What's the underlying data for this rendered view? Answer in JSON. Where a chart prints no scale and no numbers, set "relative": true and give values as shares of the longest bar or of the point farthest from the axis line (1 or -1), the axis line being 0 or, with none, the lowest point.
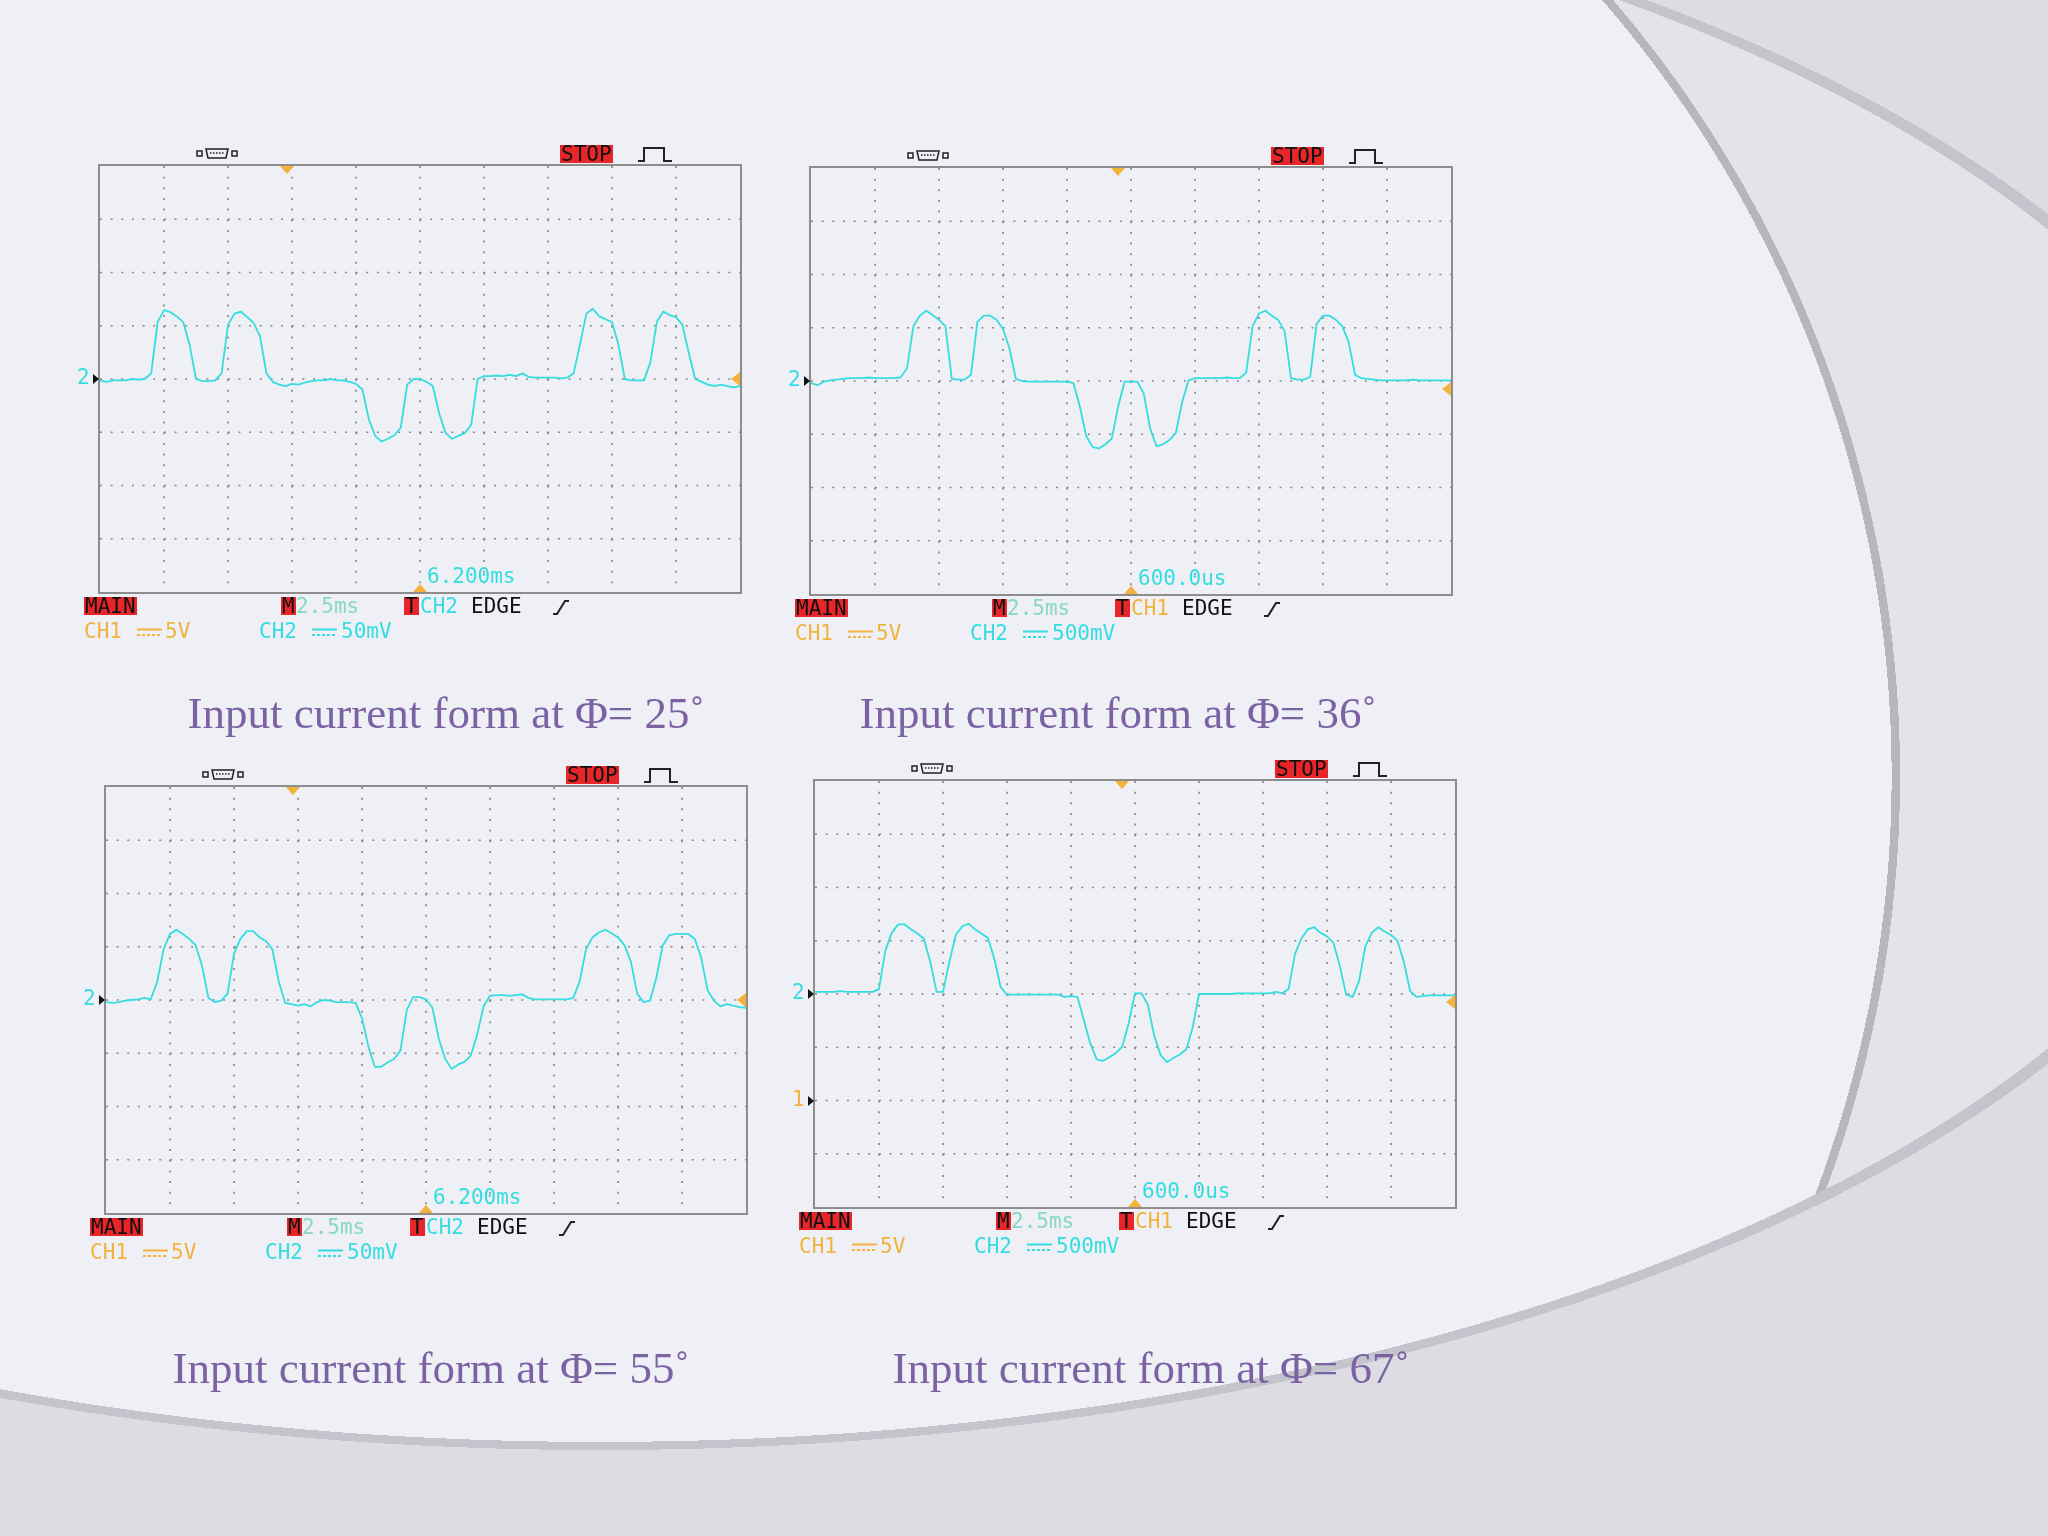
{
  "chart_data": [
    {
      "type": "line",
      "title": "Input current form at Φ= 25˚",
      "relative": true,
      "grid": true,
      "categories": [
        null,
        null,
        null,
        null,
        null,
        null,
        null,
        null,
        null,
        null,
        null,
        null,
        null,
        null,
        null,
        null,
        null,
        null,
        null,
        null,
        null,
        null,
        null,
        null,
        null,
        null,
        null,
        null,
        null,
        null,
        null,
        null,
        null,
        null,
        null,
        null,
        null,
        null,
        null,
        null,
        null,
        null,
        null,
        null,
        null,
        null,
        null,
        null,
        null,
        null,
        null,
        null,
        null,
        null,
        null,
        null,
        null,
        null,
        null,
        null,
        null,
        null,
        null,
        null,
        null,
        null,
        null,
        null,
        null,
        null,
        null,
        null,
        null,
        null,
        null,
        null,
        null,
        null,
        null,
        null,
        null,
        null,
        null,
        null,
        null,
        null,
        null,
        null,
        null,
        null,
        null,
        null,
        null,
        null,
        null,
        null,
        null,
        null,
        null,
        null,
        null
      ],
      "series": [
        {
          "color": "#33dde0",
          "values": [
            -0.02,
            -0.04,
            -0.02,
            -0.02,
            -0.02,
            0,
            -0.01,
            0,
            0.08,
            0.81,
            0.98,
            0.95,
            0.89,
            0.81,
            0.49,
            0,
            -0.03,
            -0.03,
            -0.02,
            0.08,
            0.77,
            0.93,
            0.96,
            0.88,
            0.8,
            0.61,
            0.08,
            -0.04,
            -0.08,
            -0.1,
            -0.07,
            -0.08,
            -0.05,
            -0.03,
            -0.02,
            -0.02,
            0,
            -0.02,
            -0.02,
            -0.04,
            -0.07,
            -0.15,
            -0.57,
            -0.81,
            -0.89,
            -0.85,
            -0.8,
            -0.69,
            -0.08,
            0,
            0,
            -0.04,
            -0.1,
            -0.49,
            -0.77,
            -0.85,
            -0.81,
            -0.77,
            -0.65,
            0,
            0.04,
            0.04,
            0.05,
            0.04,
            0.06,
            0.04,
            0.08,
            0.03,
            0.02,
            0.02,
            0.02,
            0.02,
            0.01,
            0.02,
            0.08,
            0.49,
            0.93,
            1,
            0.89,
            0.85,
            0.81,
            0.49,
            0,
            -0.02,
            -0.02,
            -0.02,
            0.24,
            0.81,
            0.96,
            0.91,
            0.88,
            0.77,
            0.37,
            0,
            -0.04,
            -0.08,
            -0.1,
            -0.08,
            -0.1,
            -0.12,
            -0.1
          ]
        }
      ],
      "annotations": [
        "STOP",
        "MAIN",
        "M",
        "2.5ms",
        "T",
        "CH2",
        "EDGE",
        "CH1",
        "5V",
        "CH2",
        "50mV",
        "6.200ms",
        "2"
      ]
    },
    {
      "type": "line",
      "title": "Input current form at Φ= 36˚",
      "relative": true,
      "grid": true,
      "categories": [
        null,
        null,
        null,
        null,
        null,
        null,
        null,
        null,
        null,
        null,
        null,
        null,
        null,
        null,
        null,
        null,
        null,
        null,
        null,
        null,
        null,
        null,
        null,
        null,
        null,
        null,
        null,
        null,
        null,
        null,
        null,
        null,
        null,
        null,
        null,
        null,
        null,
        null,
        null,
        null,
        null,
        null,
        null,
        null,
        null,
        null,
        null,
        null,
        null,
        null,
        null,
        null,
        null,
        null,
        null,
        null,
        null,
        null,
        null,
        null,
        null,
        null,
        null,
        null,
        null,
        null,
        null,
        null,
        null,
        null,
        null,
        null,
        null,
        null,
        null,
        null,
        null,
        null,
        null,
        null,
        null,
        null,
        null,
        null,
        null,
        null,
        null,
        null,
        null,
        null,
        null,
        null,
        null,
        null,
        null,
        null,
        null,
        null,
        null,
        null,
        null
      ],
      "series": [
        {
          "color": "#33dde0",
          "values": [
            -0.03,
            -0.06,
            -0.01,
            0.01,
            0.02,
            0.03,
            0.04,
            0.04,
            0.04,
            0.05,
            0.04,
            0.04,
            0.04,
            0.04,
            0.05,
            0.18,
            0.78,
            0.93,
            1,
            0.94,
            0.87,
            0.78,
            0.03,
            0.02,
            0.02,
            0.09,
            0.84,
            0.93,
            0.93,
            0.87,
            0.74,
            0.47,
            0.03,
            0,
            -0.01,
            -0.01,
            -0.01,
            -0.01,
            -0.01,
            -0.01,
            -0.01,
            -0.03,
            -0.36,
            -0.78,
            -0.94,
            -0.96,
            -0.9,
            -0.82,
            -0.36,
            -0.01,
            -0.01,
            -0.01,
            -0.18,
            -0.68,
            -0.93,
            -0.9,
            -0.84,
            -0.74,
            -0.3,
            0.01,
            0.04,
            0.04,
            0.04,
            0.04,
            0.04,
            0.05,
            0.04,
            0.04,
            0.12,
            0.78,
            0.96,
            1,
            0.93,
            0.87,
            0.71,
            0.04,
            0.02,
            0.02,
            0.06,
            0.81,
            0.93,
            0.93,
            0.87,
            0.78,
            0.56,
            0.09,
            0.04,
            0.03,
            0.02,
            0.01,
            0.01,
            0.01,
            0.01,
            0.01,
            0.02,
            0.01,
            0.01,
            0.01,
            0.01,
            0.01,
            0.01
          ]
        }
      ],
      "annotations": [
        "STOP",
        "MAIN",
        "M",
        "2.5ms",
        "T",
        "CH1",
        "EDGE",
        "CH1",
        "5V",
        "CH2",
        "500mV",
        "600.0us",
        "2"
      ]
    },
    {
      "type": "line",
      "title": "Input current form at Φ= 55˚",
      "relative": true,
      "grid": true,
      "categories": [
        null,
        null,
        null,
        null,
        null,
        null,
        null,
        null,
        null,
        null,
        null,
        null,
        null,
        null,
        null,
        null,
        null,
        null,
        null,
        null,
        null,
        null,
        null,
        null,
        null,
        null,
        null,
        null,
        null,
        null,
        null,
        null,
        null,
        null,
        null,
        null,
        null,
        null,
        null,
        null,
        null,
        null,
        null,
        null,
        null,
        null,
        null,
        null,
        null,
        null,
        null,
        null,
        null,
        null,
        null,
        null,
        null,
        null,
        null,
        null,
        null,
        null,
        null,
        null,
        null,
        null,
        null,
        null,
        null,
        null,
        null,
        null,
        null,
        null,
        null,
        null,
        null,
        null,
        null,
        null,
        null,
        null,
        null,
        null,
        null,
        null,
        null,
        null,
        null,
        null,
        null,
        null,
        null,
        null,
        null,
        null,
        null,
        null,
        null,
        null,
        null
      ],
      "series": [
        {
          "color": "#33dde0",
          "values": [
            -0.03,
            -0.04,
            -0.03,
            -0.01,
            0,
            0.01,
            0.03,
            0.01,
            0.26,
            0.72,
            0.94,
            1,
            0.94,
            0.87,
            0.78,
            0.49,
            0.03,
            -0.03,
            -0.01,
            0.09,
            0.66,
            0.87,
            0.98,
            0.98,
            0.89,
            0.84,
            0.72,
            0.26,
            -0.04,
            -0.06,
            -0.08,
            -0.06,
            -0.09,
            -0.03,
            0,
            -0.01,
            -0.03,
            -0.03,
            -0.03,
            -0.04,
            -0.26,
            -0.66,
            -0.95,
            -0.95,
            -0.89,
            -0.84,
            -0.72,
            -0.14,
            0.04,
            0.04,
            0.01,
            -0.11,
            -0.55,
            -0.84,
            -0.98,
            -0.92,
            -0.88,
            -0.79,
            -0.49,
            -0.09,
            0.06,
            0.07,
            0.07,
            0.06,
            0.07,
            0.08,
            0.03,
            0.01,
            0.01,
            0.01,
            0.01,
            0.01,
            0.01,
            0.03,
            0.26,
            0.72,
            0.89,
            0.96,
            1,
            0.95,
            0.89,
            0.78,
            0.55,
            0.09,
            -0.03,
            -0.01,
            0.32,
            0.78,
            0.92,
            0.94,
            0.94,
            0.94,
            0.87,
            0.6,
            0.14,
            -0.01,
            -0.09,
            -0.06,
            -0.08,
            -0.1,
            -0.11
          ]
        }
      ],
      "annotations": [
        "STOP",
        "MAIN",
        "M",
        "2.5ms",
        "T",
        "CH2",
        "EDGE",
        "CH1",
        "5V",
        "CH2",
        "50mV",
        "6.200ms",
        "2"
      ]
    },
    {
      "type": "line",
      "title": "Input current form at Φ= 67˚",
      "relative": true,
      "grid": true,
      "categories": [
        null,
        null,
        null,
        null,
        null,
        null,
        null,
        null,
        null,
        null,
        null,
        null,
        null,
        null,
        null,
        null,
        null,
        null,
        null,
        null,
        null,
        null,
        null,
        null,
        null,
        null,
        null,
        null,
        null,
        null,
        null,
        null,
        null,
        null,
        null,
        null,
        null,
        null,
        null,
        null,
        null,
        null,
        null,
        null,
        null,
        null,
        null,
        null,
        null,
        null,
        null,
        null,
        null,
        null,
        null,
        null,
        null,
        null,
        null,
        null,
        null,
        null,
        null,
        null,
        null,
        null,
        null,
        null,
        null,
        null,
        null,
        null,
        null,
        null,
        null,
        null,
        null,
        null,
        null,
        null,
        null,
        null,
        null,
        null,
        null,
        null,
        null,
        null,
        null,
        null,
        null,
        null,
        null,
        null,
        null,
        null,
        null,
        null,
        null,
        null,
        null
      ],
      "series": [
        {
          "color": "#33dde0",
          "values": [
            0.03,
            0.03,
            0.03,
            0.03,
            0.04,
            0.03,
            0.03,
            0.03,
            0.03,
            0.03,
            0.07,
            0.62,
            0.87,
            0.99,
            0.99,
            0.92,
            0.86,
            0.79,
            0.46,
            0.03,
            0.03,
            0.46,
            0.84,
            0.96,
            1,
            0.92,
            0.86,
            0.8,
            0.51,
            0.1,
            -0.01,
            -0.01,
            -0.01,
            -0.01,
            -0.01,
            -0.01,
            -0.01,
            -0.01,
            -0.01,
            -0.04,
            -0.03,
            -0.04,
            -0.37,
            -0.7,
            -0.93,
            -0.95,
            -0.9,
            -0.84,
            -0.75,
            -0.42,
            0.01,
            0.01,
            -0.15,
            -0.59,
            -0.87,
            -0.97,
            -0.91,
            -0.86,
            -0.79,
            -0.48,
            0,
            0,
            0,
            0,
            0,
            0,
            0.01,
            0.01,
            0.01,
            0.01,
            0.01,
            0.01,
            0.03,
            0.01,
            0.07,
            0.57,
            0.79,
            0.92,
            0.95,
            0.87,
            0.82,
            0.73,
            0.4,
            -0.01,
            -0.04,
            0.18,
            0.68,
            0.87,
            0.95,
            0.89,
            0.84,
            0.76,
            0.46,
            0.04,
            -0.04,
            -0.03,
            -0.02,
            -0.02,
            -0.02,
            -0.02,
            -0.02
          ]
        }
      ],
      "annotations": [
        "STOP",
        "MAIN",
        "M",
        "2.5ms",
        "T",
        "CH1",
        "EDGE",
        "CH1",
        "5V",
        "CH2",
        "500mV",
        "600.0us",
        "2",
        "1"
      ]
    }
  ]
}
